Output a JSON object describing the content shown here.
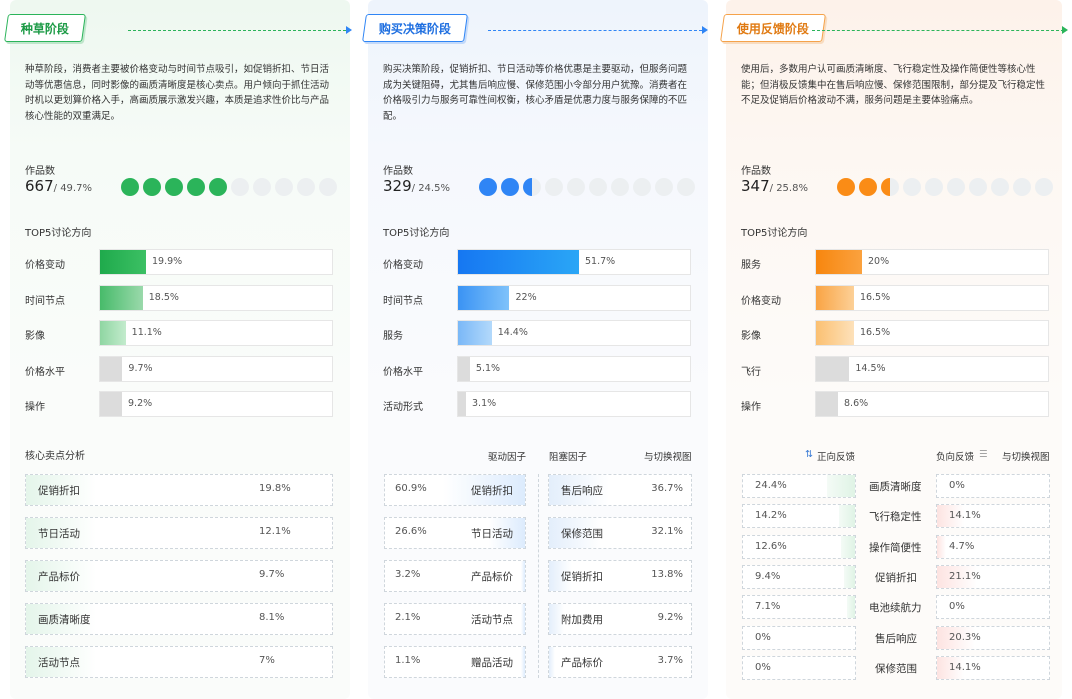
{
  "stages": [
    {
      "key": "g",
      "title": "种草阶段",
      "desc": "种草阶段，消费者主要被价格变动与时间节点吸引，如促销折扣、节日活动等优惠信息，同时影像的画质清晰度是核心卖点。用户倾向于抓住活动时机以更划算价格入手，高画质展示激发兴趣，本质是追求性价比与产品核心性能的双重满足。",
      "count_label": "作品数",
      "count": "667",
      "share": "/ 49.7%",
      "dots_filled": 5,
      "dot_color": "#2bb45a",
      "top5_label": "TOP5讨论方向",
      "top5": [
        {
          "label": "价格变动",
          "value": "19.9%",
          "pct": 19.9,
          "color": "linear-gradient(90deg,#1faa4c,#3cc064)"
        },
        {
          "label": "时间节点",
          "value": "18.5%",
          "pct": 18.5,
          "color": "linear-gradient(90deg,#47bb6a,#9ad9ab)"
        },
        {
          "label": "影像",
          "value": "11.1%",
          "pct": 11.1,
          "color": "linear-gradient(90deg,#8fd6a2,#c3ebcd)"
        },
        {
          "label": "价格水平",
          "value": "9.7%",
          "pct": 9.7,
          "color": "#dcdcdc"
        },
        {
          "label": "操作",
          "value": "9.2%",
          "pct": 9.2,
          "color": "#dcdcdc"
        }
      ],
      "core_label": "核心卖点分析",
      "core": [
        {
          "label": "促销折扣",
          "value": "19.8%"
        },
        {
          "label": "节日活动",
          "value": "12.1%"
        },
        {
          "label": "产品标价",
          "value": "9.7%"
        },
        {
          "label": "画质清晰度",
          "value": "8.1%"
        },
        {
          "label": "活动节点",
          "value": "7%"
        }
      ]
    },
    {
      "key": "b",
      "title": "购买决策阶段",
      "desc": "购买决策阶段，促销折扣、节日活动等价格优惠是主要驱动，但服务问题成为关键阻碍，尤其售后响应慢、保修范围小令部分用户犹豫。消费者在价格吸引力与服务可靠性间权衡，核心矛盾是优惠力度与服务保障的不匹配。",
      "count_label": "作品数",
      "count": "329",
      "share": "/ 24.5%",
      "dots_filled": 2.5,
      "dot_color": "#2f85f5",
      "top5_label": "TOP5讨论方向",
      "top5": [
        {
          "label": "价格变动",
          "value": "51.7%",
          "pct": 51.7,
          "color": "linear-gradient(90deg,#1677f2,#2aa6f6)"
        },
        {
          "label": "时间节点",
          "value": "22%",
          "pct": 22,
          "color": "linear-gradient(90deg,#3a93f4,#7fc2fa)"
        },
        {
          "label": "服务",
          "value": "14.4%",
          "pct": 14.4,
          "color": "linear-gradient(90deg,#7ab8f7,#b3d9fb)"
        },
        {
          "label": "价格水平",
          "value": "5.1%",
          "pct": 5.1,
          "color": "#dcdcdc"
        },
        {
          "label": "活动形式",
          "value": "3.1%",
          "pct": 3.1,
          "color": "#dcdcdc"
        }
      ],
      "hdr_drive": "驱动因子",
      "hdr_block": "阻塞因子",
      "hdr_switch": "与切换视图",
      "drive": [
        {
          "label": "促销折扣",
          "value": "60.9%",
          "pct": 60.9
        },
        {
          "label": "节日活动",
          "value": "26.6%",
          "pct": 26.6
        },
        {
          "label": "产品标价",
          "value": "3.2%",
          "pct": 3.2
        },
        {
          "label": "活动节点",
          "value": "2.1%",
          "pct": 2.1
        },
        {
          "label": "赠品活动",
          "value": "1.1%",
          "pct": 1.1
        }
      ],
      "block": [
        {
          "label": "售后响应",
          "value": "36.7%",
          "pct": 36.7
        },
        {
          "label": "保修范围",
          "value": "32.1%",
          "pct": 32.1
        },
        {
          "label": "促销折扣",
          "value": "13.8%",
          "pct": 13.8
        },
        {
          "label": "附加费用",
          "value": "9.2%",
          "pct": 9.2
        },
        {
          "label": "产品标价",
          "value": "3.7%",
          "pct": 3.7
        }
      ]
    },
    {
      "key": "o",
      "title": "使用反馈阶段",
      "desc": "使用后，多数用户认可画质清晰度、飞行稳定性及操作简便性等核心性能；但消极反馈集中在售后响应慢、保修范围限制，部分提及飞行稳定性不足及促销后价格波动不满，服务问题是主要体验痛点。",
      "count_label": "作品数",
      "count": "347",
      "share": "/ 25.8%",
      "dots_filled": 2.5,
      "dot_color": "#fa8c16",
      "top5_label": "TOP5讨论方向",
      "top5": [
        {
          "label": "服务",
          "value": "20%",
          "pct": 20,
          "color": "linear-gradient(90deg,#f7860e,#fba23f)"
        },
        {
          "label": "价格变动",
          "value": "16.5%",
          "pct": 16.5,
          "color": "linear-gradient(90deg,#f9a444,#fcd097)"
        },
        {
          "label": "影像",
          "value": "16.5%",
          "pct": 16.5,
          "color": "linear-gradient(90deg,#fbc071,#fde1ba)"
        },
        {
          "label": "飞行",
          "value": "14.5%",
          "pct": 14.5,
          "color": "#dcdcdc"
        },
        {
          "label": "操作",
          "value": "8.6%",
          "pct": 8.6,
          "color": "#dcdcdc"
        }
      ],
      "hdr_pos": "正向反馈",
      "hdr_neg": "负向反馈",
      "hdr_switch": "与切换视图",
      "feedback": [
        {
          "label": "画质清晰度",
          "pos": "24.4%",
          "pos_pct": 24.4,
          "neg": "0%",
          "neg_pct": 0
        },
        {
          "label": "飞行稳定性",
          "pos": "14.2%",
          "pos_pct": 14.2,
          "neg": "14.1%",
          "neg_pct": 14.1
        },
        {
          "label": "操作简便性",
          "pos": "12.6%",
          "pos_pct": 12.6,
          "neg": "4.7%",
          "neg_pct": 4.7
        },
        {
          "label": "促销折扣",
          "pos": "9.4%",
          "pos_pct": 9.4,
          "neg": "21.1%",
          "neg_pct": 21.1
        },
        {
          "label": "电池续航力",
          "pos": "7.1%",
          "pos_pct": 7.1,
          "neg": "0%",
          "neg_pct": 0
        },
        {
          "label": "售后响应",
          "pos": "0%",
          "pos_pct": 0,
          "neg": "20.3%",
          "neg_pct": 20.3
        },
        {
          "label": "保修范围",
          "pos": "0%",
          "pos_pct": 0,
          "neg": "14.1%",
          "neg_pct": 14.1
        }
      ]
    }
  ]
}
